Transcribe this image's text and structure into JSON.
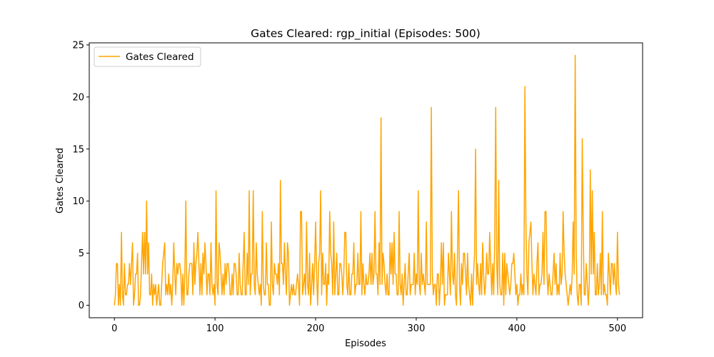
{
  "chart_data": {
    "type": "line",
    "title": "Gates Cleared: rgp_initial (Episodes: 500)",
    "xlabel": "Episodes",
    "ylabel": "Gates Cleared",
    "xlim": [
      -25,
      525
    ],
    "ylim": [
      -1.2,
      25.2
    ],
    "x_ticks": [
      0,
      100,
      200,
      300,
      400,
      500
    ],
    "y_ticks": [
      0,
      5,
      10,
      15,
      20,
      25
    ],
    "grid": false,
    "legend_position": "upper left",
    "series": [
      {
        "name": "Gates Cleared",
        "color": "#ffa500",
        "x_start": 0,
        "x_step": 1,
        "values": [
          0,
          1,
          4,
          4,
          0,
          2,
          0,
          7,
          1,
          0,
          4,
          1,
          1,
          2,
          2,
          4,
          2,
          4,
          6,
          0,
          1,
          3,
          3,
          5,
          0,
          0,
          1,
          4,
          7,
          3,
          7,
          3,
          10,
          3,
          6,
          1,
          1,
          3,
          0,
          2,
          1,
          2,
          0,
          1,
          2,
          0,
          0,
          2,
          4,
          5,
          6,
          1,
          2,
          1,
          3,
          1,
          2,
          0,
          2,
          6,
          3,
          1,
          4,
          3,
          4,
          4,
          3,
          0,
          3,
          0,
          3,
          10,
          1,
          1,
          3,
          4,
          4,
          4,
          1,
          6,
          2,
          4,
          5,
          7,
          4,
          1,
          4,
          1,
          5,
          3,
          6,
          4,
          1,
          3,
          3,
          1,
          6,
          2,
          1,
          2,
          0,
          11,
          2,
          1,
          6,
          5,
          3,
          1,
          3,
          1,
          4,
          2,
          4,
          4,
          3,
          1,
          1,
          3,
          1,
          4,
          4,
          3,
          1,
          1,
          5,
          2,
          1,
          1,
          4,
          7,
          1,
          1,
          5,
          2,
          11,
          1,
          3,
          3,
          11,
          2,
          1,
          6,
          3,
          2,
          1,
          2,
          0,
          9,
          2,
          1,
          1,
          6,
          2,
          2,
          0,
          0,
          8,
          2,
          1,
          4,
          3,
          3,
          2,
          4,
          1,
          12,
          4,
          4,
          2,
          6,
          3,
          1,
          6,
          5,
          0,
          1,
          2,
          1,
          2,
          1,
          1,
          2,
          3,
          2,
          0,
          9,
          9,
          1,
          2,
          3,
          1,
          8,
          2,
          1,
          5,
          0,
          2,
          4,
          1,
          4,
          8,
          3,
          0,
          4,
          5,
          11,
          1,
          5,
          2,
          2,
          4,
          0,
          3,
          2,
          9,
          5,
          4,
          1,
          8,
          1,
          3,
          5,
          1,
          1,
          4,
          4,
          3,
          1,
          3,
          7,
          7,
          2,
          1,
          4,
          1,
          1,
          3,
          3,
          6,
          1,
          2,
          2,
          5,
          2,
          2,
          9,
          1,
          4,
          2,
          1,
          3,
          2,
          2,
          3,
          5,
          2,
          5,
          2,
          3,
          9,
          3,
          3,
          1,
          6,
          2,
          18,
          2,
          5,
          4,
          2,
          1,
          3,
          1,
          1,
          6,
          3,
          6,
          2,
          7,
          3,
          3,
          1,
          1,
          9,
          2,
          1,
          3,
          0,
          2,
          4,
          1,
          1,
          3,
          5,
          1,
          2,
          2,
          2,
          5,
          1,
          3,
          2,
          11,
          2,
          1,
          5,
          2,
          3,
          2,
          1,
          8,
          2,
          2,
          2,
          2,
          19,
          3,
          1,
          2,
          2,
          0,
          3,
          3,
          0,
          2,
          6,
          2,
          6,
          0,
          1,
          1,
          1,
          5,
          3,
          1,
          9,
          3,
          2,
          5,
          1,
          0,
          5,
          11,
          2,
          0,
          4,
          2,
          5,
          5,
          3,
          1,
          5,
          2,
          1,
          0,
          3,
          0,
          3,
          5,
          15,
          2,
          4,
          2,
          1,
          4,
          1,
          6,
          3,
          1,
          2,
          5,
          3,
          3,
          7,
          4,
          1,
          4,
          1,
          6,
          19,
          4,
          1,
          12,
          2,
          1,
          1,
          5,
          0,
          5,
          1,
          4,
          3,
          2,
          1,
          2,
          4,
          4,
          5,
          3,
          1,
          2,
          0,
          1,
          1,
          3,
          1,
          2,
          1,
          21,
          8,
          3,
          1,
          6,
          7,
          8,
          4,
          1,
          3,
          2,
          1,
          4,
          6,
          1,
          2,
          2,
          3,
          7,
          2,
          9,
          9,
          3,
          1,
          3,
          2,
          1,
          1,
          3,
          5,
          2,
          4,
          1,
          2,
          1,
          5,
          2,
          3,
          9,
          5,
          3,
          2,
          1,
          0,
          1,
          2,
          1,
          3,
          8,
          3,
          24,
          5,
          1,
          0,
          2,
          2,
          0,
          16,
          7,
          1,
          1,
          4,
          2,
          0,
          2,
          13,
          3,
          11,
          3,
          7,
          1,
          1,
          4,
          1,
          2,
          5,
          1,
          9,
          1,
          2,
          1,
          1,
          0,
          5,
          3,
          1,
          4,
          4,
          2,
          4,
          2,
          1,
          7,
          2,
          1
        ]
      }
    ]
  }
}
